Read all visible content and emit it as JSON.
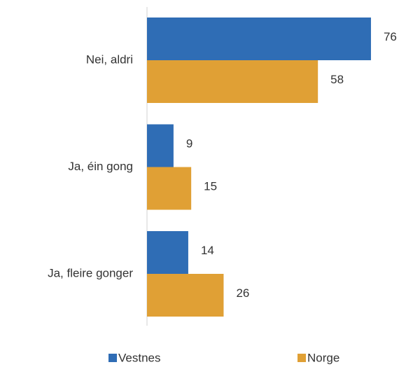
{
  "chart_data": {
    "type": "bar",
    "orientation": "horizontal",
    "categories": [
      "Nei, aldri",
      "Ja, éin gong",
      "Ja, fleire gonger"
    ],
    "series": [
      {
        "name": "Vestnes",
        "color": "#2f6db5",
        "values": [
          76,
          9,
          14
        ]
      },
      {
        "name": "Norge",
        "color": "#e0a035",
        "values": [
          58,
          15,
          26
        ]
      }
    ],
    "legend": "bottom"
  }
}
